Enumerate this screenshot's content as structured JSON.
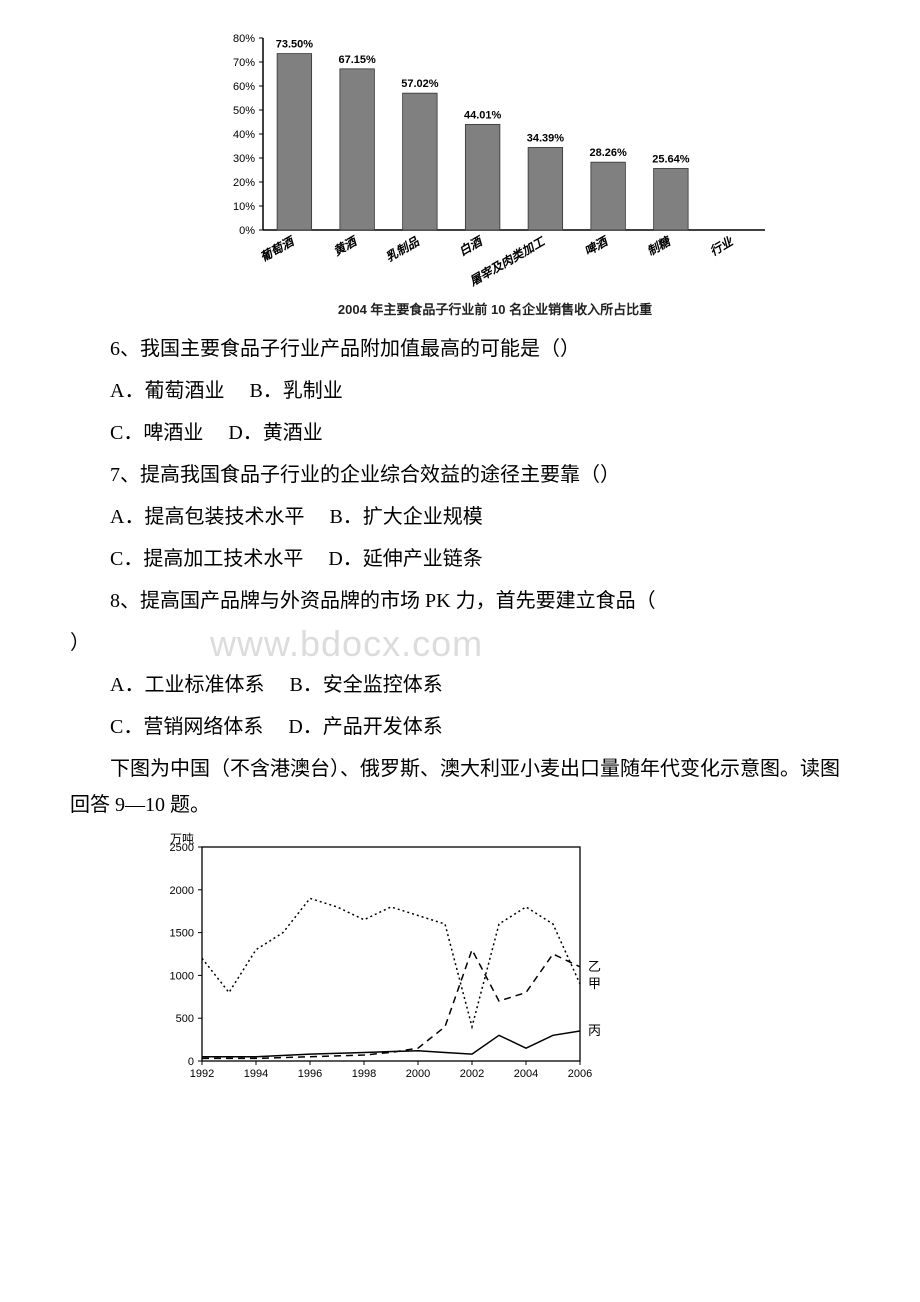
{
  "bar_chart": {
    "type": "bar",
    "categories": [
      "葡萄酒",
      "黄酒",
      "乳制品",
      "白酒",
      "屠宰及肉类加工",
      "啤酒",
      "制糖",
      "行业"
    ],
    "values": [
      73.5,
      67.15,
      57.02,
      44.01,
      34.39,
      28.26,
      25.64,
      null
    ],
    "value_labels": [
      "73.50%",
      "67.15%",
      "57.02%",
      "44.01%",
      "34.39%",
      "28.26%",
      "25.64%",
      ""
    ],
    "bar_color": "#808080",
    "bar_border": "#333333",
    "ylim": [
      0,
      80
    ],
    "ytick_step": 10,
    "ytick_labels": [
      "0%",
      "10%",
      "20%",
      "30%",
      "40%",
      "50%",
      "60%",
      "70%",
      "80%"
    ],
    "bar_width": 0.55,
    "caption": "2004 年主要食品子行业前 10 名企业销售收入所占比重",
    "label_fontsize": 11,
    "tick_fontsize": 11,
    "background_color": "#ffffff",
    "axis_color": "#000000",
    "xcat_rotation": -30
  },
  "q6": {
    "text": "6、我国主要食品子行业产品附加值最高的可能是（）",
    "optA": "A．葡萄酒业",
    "optB": "B．乳制业",
    "optC": "C．啤酒业",
    "optD": "D．黄酒业"
  },
  "q7": {
    "text": "7、提高我国食品子行业的企业综合效益的途径主要靠（）",
    "optA": "A．提高包装技术水平",
    "optB": "B．扩大企业规模",
    "optC": "C．提高加工技术水平",
    "optD": "D．延伸产业链条"
  },
  "q8": {
    "text_line1": "8、提高国产品牌与外资品牌的市场 PK 力，首先要建立食品（",
    "text_line2": "）",
    "optA": "A．工业标准体系",
    "optB": "B．安全监控体系",
    "optC": "C．营销网络体系",
    "optD": "D．产品开发体系"
  },
  "watermark": "www.bdocx.com",
  "passage2": "下图为中国（不含港澳台）、俄罗斯、澳大利亚小麦出口量随年代变化示意图。读图回答 9—10 题。",
  "line_chart": {
    "type": "line",
    "xlim": [
      1992,
      2006
    ],
    "ylim": [
      0,
      2500
    ],
    "xticks": [
      1992,
      1994,
      1996,
      1998,
      2000,
      2002,
      2004,
      2006
    ],
    "yticks": [
      0,
      500,
      1000,
      1500,
      2000,
      2500
    ],
    "ylabel": "万吨",
    "series": [
      {
        "name": "甲",
        "label": "甲",
        "style": "dotted",
        "color": "#000000",
        "points": [
          [
            1992,
            1200
          ],
          [
            1993,
            800
          ],
          [
            1994,
            1300
          ],
          [
            1995,
            1500
          ],
          [
            1996,
            1900
          ],
          [
            1997,
            1800
          ],
          [
            1998,
            1650
          ],
          [
            1999,
            1800
          ],
          [
            2000,
            1700
          ],
          [
            2001,
            1600
          ],
          [
            2002,
            400
          ],
          [
            2003,
            1600
          ],
          [
            2004,
            1800
          ],
          [
            2005,
            1600
          ],
          [
            2006,
            900
          ]
        ]
      },
      {
        "name": "乙",
        "label": "乙",
        "style": "dashed",
        "color": "#000000",
        "points": [
          [
            1992,
            30
          ],
          [
            1994,
            30
          ],
          [
            1996,
            50
          ],
          [
            1998,
            70
          ],
          [
            1999,
            100
          ],
          [
            2000,
            150
          ],
          [
            2001,
            400
          ],
          [
            2002,
            1300
          ],
          [
            2003,
            700
          ],
          [
            2004,
            800
          ],
          [
            2005,
            1250
          ],
          [
            2006,
            1100
          ]
        ]
      },
      {
        "name": "丙",
        "label": "丙",
        "style": "solid",
        "color": "#000000",
        "points": [
          [
            1992,
            50
          ],
          [
            1994,
            50
          ],
          [
            1996,
            80
          ],
          [
            1998,
            100
          ],
          [
            2000,
            120
          ],
          [
            2001,
            100
          ],
          [
            2002,
            80
          ],
          [
            2003,
            300
          ],
          [
            2004,
            150
          ],
          [
            2005,
            300
          ],
          [
            2006,
            350
          ]
        ]
      }
    ],
    "background_color": "#ffffff",
    "axis_color": "#000000",
    "tick_fontsize": 11
  }
}
